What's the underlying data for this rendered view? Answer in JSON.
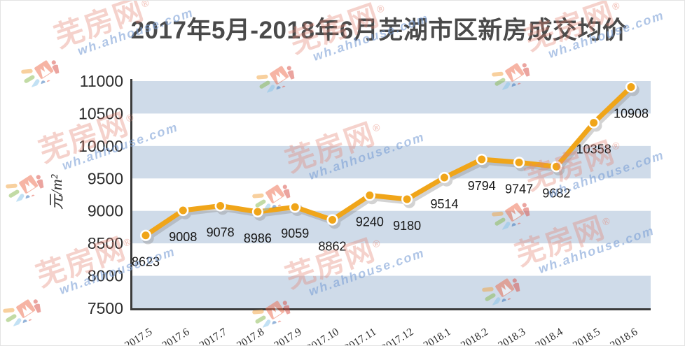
{
  "title": "2017年5月-2018年6月芜湖市区新房成交均价",
  "watermark": {
    "brand": "芜房网",
    "reg": "®",
    "url": "wh.ahhouse.com"
  },
  "y_axis_unit": "元/m²",
  "chart_data": {
    "type": "line",
    "title": "2017年5月-2018年6月芜湖市区新房成交均价",
    "xlabel": "",
    "ylabel": "元/m²",
    "categories": [
      "2017.5",
      "2017.6",
      "2017.7",
      "2017.8",
      "2017.9",
      "2017.10",
      "2017.11",
      "2017.12",
      "2018.1",
      "2018.2",
      "2018.3",
      "2018.4",
      "2018.5",
      "2018.6"
    ],
    "values": [
      8623,
      9008,
      9078,
      8986,
      9059,
      8862,
      9240,
      9180,
      9514,
      9794,
      9747,
      9682,
      10358,
      10908
    ],
    "ylim": [
      7500,
      11000
    ],
    "ytick_step": 500,
    "yticks": [
      7500,
      8000,
      8500,
      9000,
      9500,
      10000,
      10500,
      11000
    ],
    "grid": "alternating horizontal bands",
    "legend": "none",
    "data_labels": true,
    "colors": {
      "line": "#f0a519",
      "marker_fill": "#f0a519",
      "marker_ring": "#ffffff",
      "band": "#cfdbe9",
      "axis": "#3b3b3b",
      "title_text": "#4a4a4a",
      "tick_text": "#2d2d2d",
      "label_text": "#161616"
    }
  }
}
